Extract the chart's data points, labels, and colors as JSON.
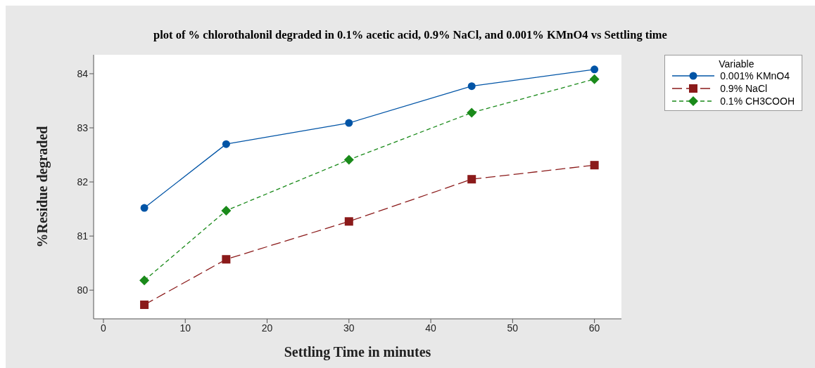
{
  "chart_data": {
    "type": "line",
    "title": "plot of %  chlorothalonil degraded in 0.1%  acetic acid, 0.9%  NaCl, and 0.001%  KMnO4  vs Settling time",
    "xlabel": "Settling Time in minutes",
    "ylabel": "%Residue degraded",
    "legend_title": "Variable",
    "legend": "top right",
    "grid": false,
    "x": [
      5,
      15,
      30,
      45,
      60
    ],
    "xlim": [
      -1.2,
      63.3
    ],
    "xticks": [
      0,
      10,
      20,
      30,
      40,
      50,
      60
    ],
    "ylim": [
      79.47,
      84.35
    ],
    "yticks": [
      80,
      81,
      82,
      83,
      84
    ],
    "series": [
      {
        "name": "0.001% KMnO4",
        "color": "#0054a6",
        "values": [
          81.52,
          82.7,
          83.09,
          83.77,
          84.08
        ],
        "marker": "circle",
        "line_style": "solid"
      },
      {
        "name": "0.9% NaCl",
        "color": "#8b1a1a",
        "values": [
          79.73,
          80.57,
          81.27,
          82.05,
          82.31
        ],
        "marker": "square",
        "line_style": "dashed"
      },
      {
        "name": "0.1% CH3COOH",
        "color": "#1a8a1a",
        "values": [
          80.18,
          81.47,
          82.41,
          83.28,
          83.9
        ],
        "marker": "diamond",
        "line_style": "dashed"
      }
    ]
  }
}
